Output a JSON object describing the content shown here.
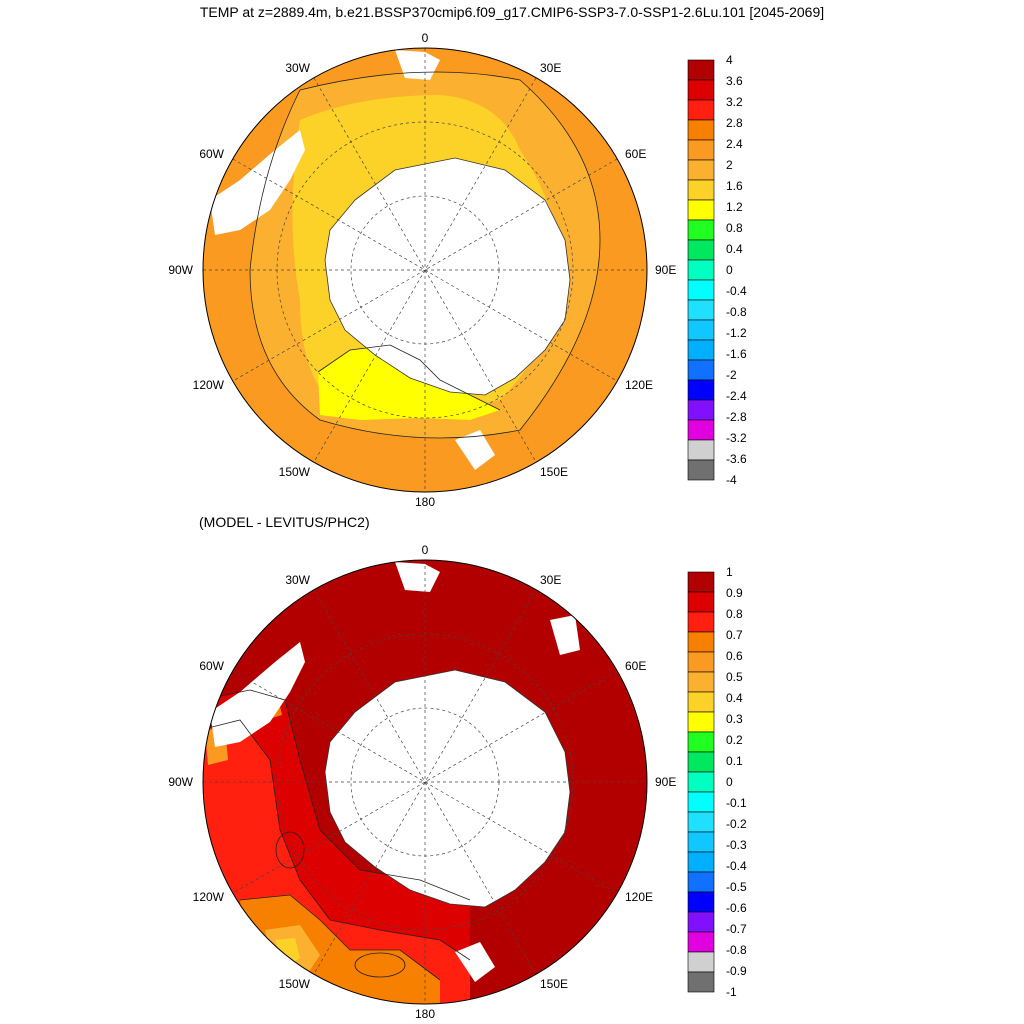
{
  "title": "TEMP at z=2889.4m, b.e21.BSSP370cmip6.f09_g17.CMIP6-SSP3-7.0-SSP1-2.6Lu.101 [2045-2069]",
  "subtitle": "(MODEL - LEVITUS/PHC2)",
  "longitude_labels": [
    "0",
    "30E",
    "60E",
    "90E",
    "120E",
    "150E",
    "180",
    "150W",
    "120W",
    "90W",
    "60W",
    "30W"
  ],
  "panels": [
    {
      "name": "temperature",
      "colorbar": {
        "labels": [
          "4",
          "3.6",
          "3.2",
          "2.8",
          "2.4",
          "2",
          "1.6",
          "1.2",
          "0.8",
          "0.4",
          "0",
          "-0.4",
          "-0.8",
          "-1.2",
          "-1.6",
          "-2",
          "-2.4",
          "-2.8",
          "-3.2",
          "-3.6",
          "-4"
        ],
        "colors": [
          "#b20000",
          "#dd0000",
          "#ff2010",
          "#f88000",
          "#fa9a20",
          "#fcb030",
          "#fdd228",
          "#ffff00",
          "#20ff20",
          "#00e860",
          "#00ffc0",
          "#00ffff",
          "#20e0ff",
          "#10c8ff",
          "#00b0ff",
          "#1070ff",
          "#0000ff",
          "#8010ff",
          "#e000e0",
          "#d0d0d0",
          "#707070"
        ]
      }
    },
    {
      "name": "difference",
      "colorbar": {
        "labels": [
          "1",
          "0.9",
          "0.8",
          "0.7",
          "0.6",
          "0.5",
          "0.4",
          "0.3",
          "0.2",
          "0.1",
          "0",
          "-0.1",
          "-0.2",
          "-0.3",
          "-0.4",
          "-0.5",
          "-0.6",
          "-0.7",
          "-0.8",
          "-0.9",
          "-1"
        ],
        "colors": [
          "#b20000",
          "#dd0000",
          "#ff2010",
          "#f88000",
          "#fa9a20",
          "#fcb030",
          "#fdd228",
          "#ffff00",
          "#20ff20",
          "#00e860",
          "#00ffc0",
          "#00ffff",
          "#20e0ff",
          "#10c8ff",
          "#00b0ff",
          "#1070ff",
          "#0000ff",
          "#8010ff",
          "#e000e0",
          "#d0d0d0",
          "#707070"
        ]
      }
    }
  ]
}
